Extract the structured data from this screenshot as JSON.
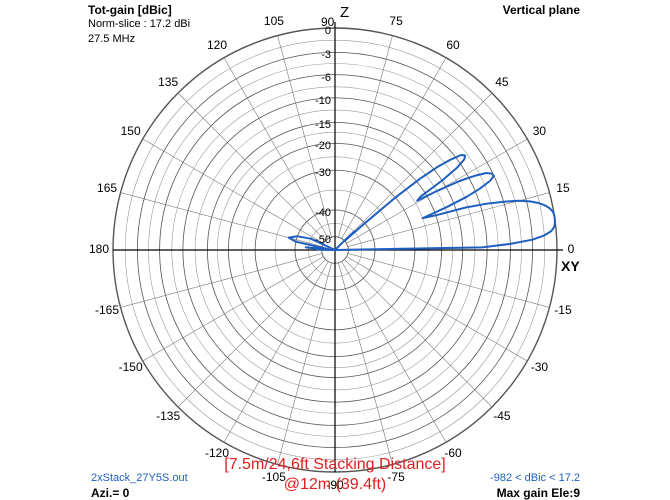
{
  "header": {
    "title": "Tot-gain [dBic]",
    "norm": "Norm-slice : 17.2 dBi",
    "freq": "27.5 MHz",
    "plane": "Vertical plane"
  },
  "footer": {
    "file": "2xStack_27Y5S.out",
    "azi": "Azi.= 0",
    "range": "-982 < dBic < 17.2",
    "maxgain": "Max gain Ele:9",
    "caption_line1": "[7.5m/24,6ft Stacking Distance]",
    "caption_line2": "@12m (39.4ft)"
  },
  "colors": {
    "trace": "#1f5fbf",
    "grid": "#555555",
    "caption": "#e02020"
  },
  "chart_data": {
    "type": "polar",
    "plane": "vertical",
    "axis_labels": {
      "top": "Z",
      "right": "XY"
    },
    "angle_ticks": [
      "0",
      "15",
      "30",
      "45",
      "60",
      "75",
      "90",
      "105",
      "120",
      "135",
      "150",
      "165",
      "180",
      "-165",
      "-150",
      "-135",
      "-120",
      "-105",
      "-90",
      "-75",
      "-60",
      "-45",
      "-30",
      "-15"
    ],
    "radial_ticks": [
      "0",
      "-3",
      "-6",
      "-10",
      "-15",
      "-20",
      "-30",
      "-40",
      "-50"
    ],
    "grid": true,
    "series": [
      {
        "angle_deg": [
          0,
          1,
          2,
          3,
          4,
          5,
          6,
          7,
          8,
          9,
          10,
          11,
          12,
          13,
          14,
          15,
          16,
          17,
          18,
          19,
          20,
          21,
          22,
          23,
          24,
          25,
          26,
          27,
          28,
          29,
          30,
          31,
          32,
          33,
          34,
          35,
          36,
          37,
          38,
          39,
          40,
          41,
          42,
          43,
          44,
          45,
          46,
          47,
          48,
          49,
          50,
          52,
          55,
          60,
          70,
          80,
          90,
          100,
          110,
          120,
          130,
          140,
          150,
          155,
          160,
          165,
          168,
          170,
          172,
          174,
          175,
          176,
          177,
          178,
          179,
          180
        ],
        "gain_dbic": [
          -60,
          -11,
          -6,
          -3,
          -1.5,
          -0.6,
          -0.2,
          -0.05,
          0,
          0,
          -0.1,
          -0.4,
          -0.9,
          -1.6,
          -2.6,
          -4,
          -6,
          -9,
          -13,
          -20,
          -25,
          -17,
          -12,
          -9,
          -7,
          -6,
          -6.2,
          -7,
          -9,
          -12,
          -17,
          -24,
          -22,
          -15,
          -11,
          -9,
          -8.5,
          -9,
          -11,
          -14,
          -19,
          -30,
          -40,
          -50,
          -45,
          -50,
          -60,
          -60,
          -60,
          -60,
          -60,
          -60,
          -60,
          -60,
          -60,
          -60,
          -60,
          -60,
          -60,
          -60,
          -60,
          -60,
          -60,
          -45,
          -40,
          -38,
          -40,
          -50,
          -55,
          -48,
          -44,
          -50,
          -52,
          -48,
          -50,
          -60
        ]
      }
    ]
  }
}
